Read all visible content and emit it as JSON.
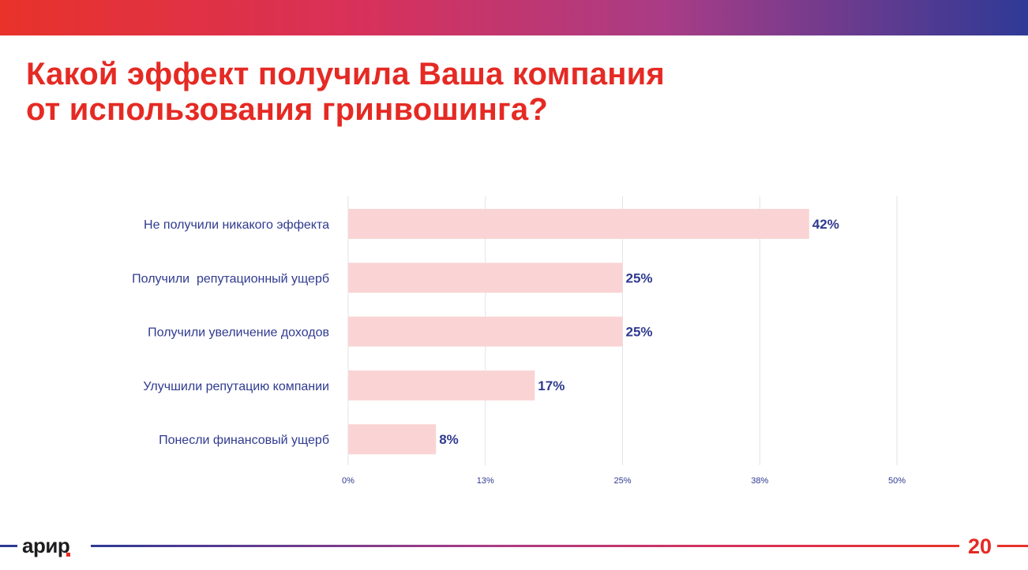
{
  "colors": {
    "accent": "#e52a24",
    "navy": "#2f3a8f",
    "bar": "#fad4d4",
    "grid": "#e3e3ea",
    "gradient": [
      "#e8322a",
      "#d8315a",
      "#a83c86",
      "#2e3a96"
    ]
  },
  "slide": {
    "title_lines": [
      "Какой эффект получила Ваша компания",
      "от использования гринвошинга?"
    ],
    "logo_text": "арир",
    "page_number": "20"
  },
  "chart_data": {
    "type": "bar",
    "orientation": "horizontal",
    "categories": [
      "Не получили никакого эффекта",
      "Получили  репутационный ущерб",
      "Получили увеличение доходов",
      "Улучшили репутацию компании",
      "Понесли финансовый ущерб"
    ],
    "values": [
      42,
      25,
      25,
      17,
      8
    ],
    "value_labels": [
      "42%",
      "25%",
      "25%",
      "17%",
      "8%"
    ],
    "x_ticks": [
      0,
      12.5,
      25,
      37.5,
      50
    ],
    "x_tick_labels": [
      "0%",
      "13%",
      "25%",
      "38%",
      "50%"
    ],
    "xlim": [
      0,
      50
    ],
    "grid": "vertical",
    "legend": "none",
    "title": "",
    "xlabel": "",
    "ylabel": ""
  }
}
